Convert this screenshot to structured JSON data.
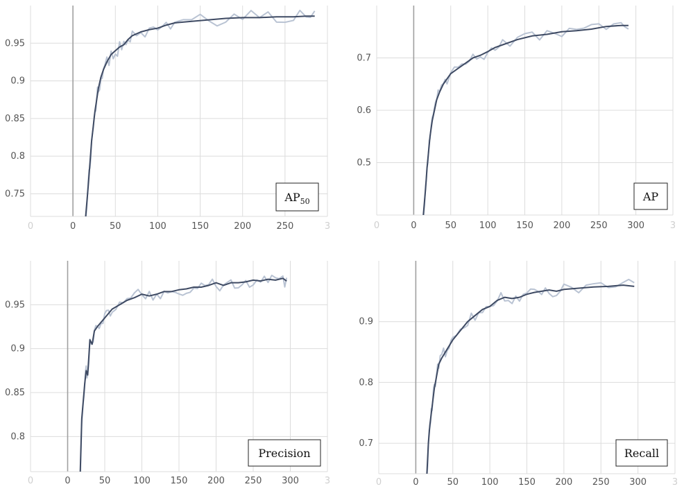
{
  "colors": {
    "smoothed": "#3e4a63",
    "raw": "#b9c3d3",
    "grid": "#dcdcdc",
    "zero_axis": "#a0a0a0",
    "tick_text": "#555555"
  },
  "chart_data": [
    {
      "type": "line",
      "title": "",
      "legend": {
        "label": "AP",
        "subscript": "50",
        "placement": "bottom-right"
      },
      "xlabel": "",
      "ylabel": "",
      "xlim": [
        -50,
        300
      ],
      "ylim": [
        0.72,
        1.0
      ],
      "x_ticks": [
        0,
        50,
        100,
        150,
        200,
        250
      ],
      "x_tick_labels": [
        "0",
        "50",
        "100",
        "150",
        "200",
        "250"
      ],
      "x_faint_ticks": [
        -50,
        300
      ],
      "x_faint_tick_labels": [
        "0",
        "3"
      ],
      "y_ticks": [
        0.75,
        0.8,
        0.85,
        0.9,
        0.95
      ],
      "y_tick_labels": [
        "0.75",
        "0.8",
        "0.85",
        "0.9",
        "0.95"
      ],
      "grid": true,
      "series": [
        {
          "x": [
            15,
            18,
            20,
            22,
            24,
            26,
            28,
            30,
            33,
            36,
            40,
            45,
            50,
            55,
            60,
            65,
            70,
            80,
            90,
            100,
            110,
            120,
            140,
            160,
            180,
            200,
            220,
            240,
            260,
            275,
            285
          ],
          "y": [
            0.72,
            0.76,
            0.79,
            0.82,
            0.84,
            0.86,
            0.875,
            0.89,
            0.905,
            0.915,
            0.925,
            0.935,
            0.94,
            0.945,
            0.948,
            0.955,
            0.96,
            0.965,
            0.968,
            0.97,
            0.974,
            0.977,
            0.979,
            0.981,
            0.983,
            0.984,
            0.984,
            0.985,
            0.985,
            0.986,
            0.986
          ]
        }
      ]
    },
    {
      "type": "line",
      "title": "",
      "legend": {
        "label": "AP",
        "subscript": "",
        "placement": "bottom-right"
      },
      "xlabel": "",
      "ylabel": "",
      "xlim": [
        -50,
        350
      ],
      "ylim": [
        0.4,
        0.8
      ],
      "x_ticks": [
        0,
        50,
        100,
        150,
        200,
        250,
        300
      ],
      "x_tick_labels": [
        "0",
        "50",
        "100",
        "150",
        "200",
        "250",
        "300"
      ],
      "x_faint_ticks": [
        -50,
        350
      ],
      "x_faint_tick_labels": [
        "0",
        "3"
      ],
      "y_ticks": [
        0.5,
        0.6,
        0.7
      ],
      "y_tick_labels": [
        "0.5",
        "0.6",
        "0.7"
      ],
      "grid": true,
      "series": [
        {
          "x": [
            13,
            16,
            18,
            20,
            22,
            25,
            28,
            31,
            35,
            40,
            45,
            50,
            60,
            70,
            80,
            90,
            100,
            110,
            120,
            140,
            160,
            180,
            200,
            220,
            240,
            260,
            280,
            290
          ],
          "y": [
            0.4,
            0.45,
            0.49,
            0.52,
            0.55,
            0.58,
            0.6,
            0.62,
            0.635,
            0.65,
            0.66,
            0.67,
            0.68,
            0.69,
            0.7,
            0.705,
            0.712,
            0.72,
            0.725,
            0.735,
            0.742,
            0.745,
            0.75,
            0.752,
            0.755,
            0.76,
            0.762,
            0.762
          ]
        }
      ]
    },
    {
      "type": "line",
      "title": "",
      "legend": {
        "label": "Precision",
        "subscript": "",
        "placement": "bottom-right"
      },
      "xlabel": "",
      "ylabel": "",
      "xlim": [
        -50,
        350
      ],
      "ylim": [
        0.76,
        1.0
      ],
      "x_ticks": [
        0,
        50,
        100,
        150,
        200,
        250,
        300
      ],
      "x_tick_labels": [
        "0",
        "50",
        "100",
        "150",
        "200",
        "250",
        "300"
      ],
      "x_faint_ticks": [
        -50,
        350
      ],
      "x_faint_tick_labels": [
        "0",
        "3"
      ],
      "y_ticks": [
        0.8,
        0.85,
        0.9,
        0.95
      ],
      "y_tick_labels": [
        "0.8",
        "0.85",
        "0.9",
        "0.95"
      ],
      "grid": true,
      "series": [
        {
          "x": [
            17,
            19,
            21,
            23,
            25,
            27,
            30,
            33,
            36,
            40,
            45,
            50,
            55,
            60,
            70,
            80,
            90,
            100,
            110,
            120,
            130,
            140,
            150,
            160,
            170,
            180,
            190,
            200,
            210,
            220,
            230,
            240,
            250,
            260,
            270,
            280,
            290,
            295
          ],
          "y": [
            0.76,
            0.82,
            0.84,
            0.86,
            0.875,
            0.87,
            0.91,
            0.905,
            0.92,
            0.925,
            0.93,
            0.935,
            0.94,
            0.945,
            0.95,
            0.955,
            0.958,
            0.962,
            0.96,
            0.962,
            0.965,
            0.965,
            0.967,
            0.968,
            0.97,
            0.97,
            0.972,
            0.975,
            0.972,
            0.975,
            0.975,
            0.976,
            0.978,
            0.977,
            0.979,
            0.978,
            0.98,
            0.977
          ]
        }
      ]
    },
    {
      "type": "line",
      "title": "",
      "legend": {
        "label": "Recall",
        "subscript": "",
        "placement": "bottom-right"
      },
      "xlabel": "",
      "ylabel": "",
      "xlim": [
        -50,
        350
      ],
      "ylim": [
        0.65,
        1.0
      ],
      "x_ticks": [
        0,
        50,
        100,
        150,
        200,
        250,
        300
      ],
      "x_tick_labels": [
        "0",
        "50",
        "100",
        "150",
        "200",
        "250",
        "300"
      ],
      "x_faint_ticks": [
        -50,
        350
      ],
      "x_faint_tick_labels": [
        "0",
        "3"
      ],
      "y_ticks": [
        0.7,
        0.8,
        0.9
      ],
      "y_tick_labels": [
        "0.7",
        "0.8",
        "0.9"
      ],
      "grid": true,
      "series": [
        {
          "x": [
            15,
            17,
            19,
            21,
            23,
            25,
            28,
            31,
            35,
            40,
            45,
            50,
            60,
            70,
            80,
            90,
            100,
            110,
            120,
            130,
            140,
            150,
            160,
            170,
            180,
            190,
            200,
            220,
            240,
            260,
            280,
            295
          ],
          "y": [
            0.65,
            0.7,
            0.73,
            0.75,
            0.77,
            0.79,
            0.81,
            0.83,
            0.84,
            0.85,
            0.86,
            0.87,
            0.885,
            0.9,
            0.91,
            0.92,
            0.925,
            0.935,
            0.94,
            0.938,
            0.94,
            0.945,
            0.948,
            0.95,
            0.952,
            0.95,
            0.953,
            0.955,
            0.957,
            0.958,
            0.96,
            0.958
          ]
        }
      ]
    }
  ]
}
